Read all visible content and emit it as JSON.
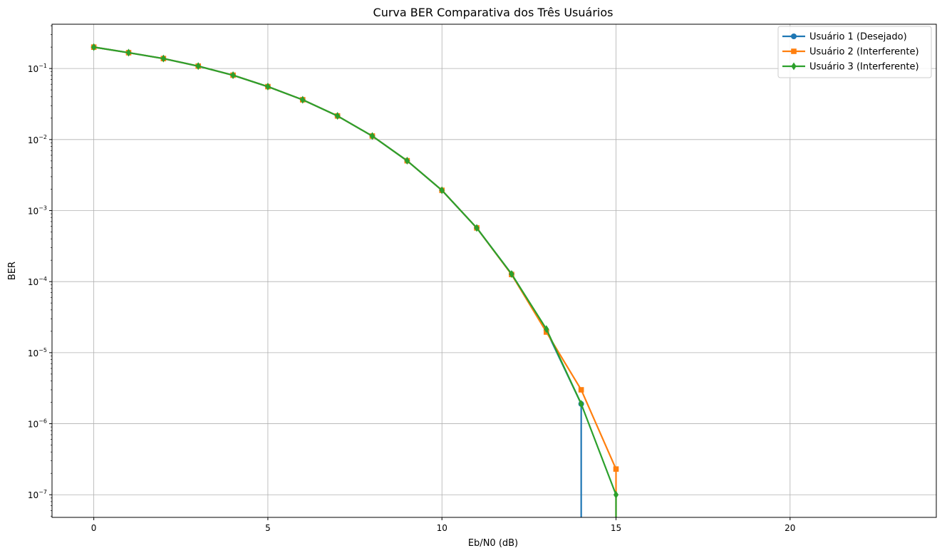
{
  "chart_data": {
    "type": "line",
    "title": "Curva BER Comparativa dos Três Usuários",
    "xlabel": "Eb/N0 (dB)",
    "ylabel": "BER",
    "xlim": [
      -1.2,
      24.2
    ],
    "ylim": [
      4.8e-08,
      0.42
    ],
    "yscale": "log",
    "grid": true,
    "legend_position": "top-right",
    "x_ticks": [
      0,
      5,
      10,
      15,
      20
    ],
    "x_tick_labels": [
      "0",
      "5",
      "10",
      "15",
      "20"
    ],
    "y_ticks": [
      1e-07,
      1e-06,
      1e-05,
      0.0001,
      0.001,
      0.01,
      0.1
    ],
    "y_tick_labels": [
      {
        "base": "10",
        "exp": "−7"
      },
      {
        "base": "10",
        "exp": "−6"
      },
      {
        "base": "10",
        "exp": "−5"
      },
      {
        "base": "10",
        "exp": "−4"
      },
      {
        "base": "10",
        "exp": "−3"
      },
      {
        "base": "10",
        "exp": "−2"
      },
      {
        "base": "10",
        "exp": "−1"
      }
    ],
    "series": [
      {
        "name": "Usuário 1 (Desejado)",
        "color": "#1f77b4",
        "marker": "circle",
        "x": [
          0,
          1,
          2,
          3,
          4,
          5,
          6,
          7,
          8,
          9,
          10,
          11,
          12,
          13,
          14
        ],
        "y": [
          0.2,
          0.167,
          0.138,
          0.108,
          0.0805,
          0.0556,
          0.0363,
          0.0215,
          0.0112,
          0.00503,
          0.00193,
          0.00057,
          0.000128,
          2.05e-05,
          1.9e-06
        ],
        "drop_to_zero_at": 14
      },
      {
        "name": "Usuário 2 (Interferente)",
        "color": "#ff7f0e",
        "marker": "square",
        "x": [
          0,
          1,
          2,
          3,
          4,
          5,
          6,
          7,
          8,
          9,
          10,
          11,
          12,
          13,
          14,
          15
        ],
        "y": [
          0.2,
          0.167,
          0.138,
          0.108,
          0.0805,
          0.0556,
          0.0363,
          0.0215,
          0.0112,
          0.00503,
          0.00193,
          0.00057,
          0.000126,
          1.95e-05,
          3e-06,
          2.3e-07
        ],
        "drop_to_zero_at": 15
      },
      {
        "name": "Usuário 3 (Interferente)",
        "color": "#2ca02c",
        "marker": "diamond",
        "x": [
          0,
          1,
          2,
          3,
          4,
          5,
          6,
          7,
          8,
          9,
          10,
          11,
          12,
          13,
          14,
          15
        ],
        "y": [
          0.2,
          0.167,
          0.138,
          0.108,
          0.0805,
          0.0556,
          0.0363,
          0.0215,
          0.0112,
          0.00503,
          0.00193,
          0.00057,
          0.000128,
          2.15e-05,
          1.9e-06,
          1e-07
        ],
        "drop_to_zero_at": 15
      }
    ]
  }
}
